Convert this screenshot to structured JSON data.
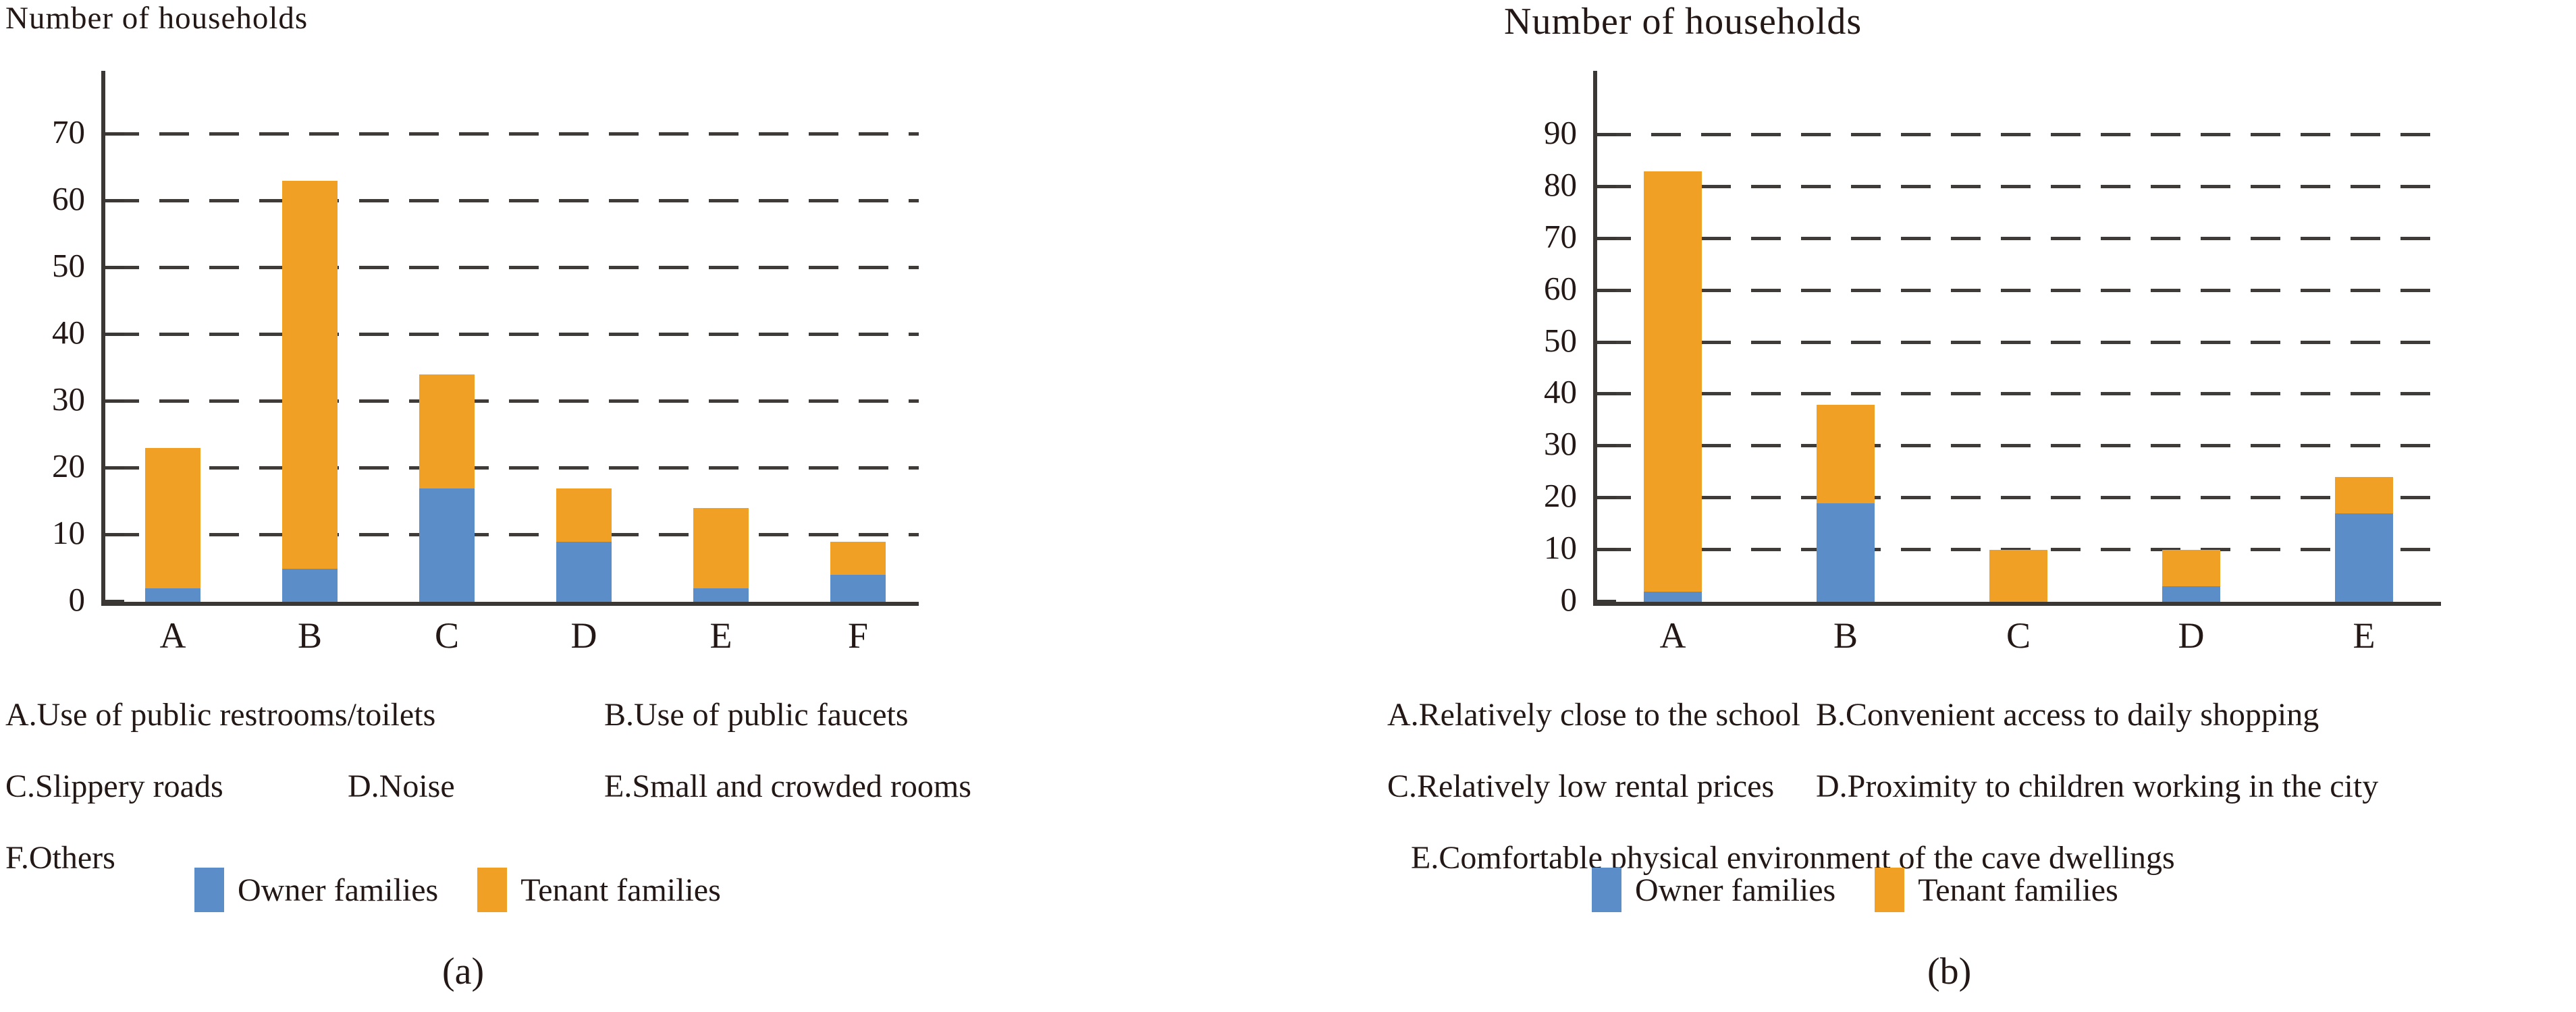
{
  "chart_data": [
    {
      "type": "bar",
      "stacked": true,
      "title": "Number of households",
      "caption": "(a)",
      "categories": [
        "A",
        "B",
        "C",
        "D",
        "E",
        "F"
      ],
      "series": [
        {
          "name": "Owner families",
          "values": [
            2,
            5,
            17,
            9,
            2,
            4
          ]
        },
        {
          "name": "Tenant families",
          "values": [
            21,
            58,
            17,
            8,
            12,
            5
          ]
        }
      ],
      "stack_totals": [
        23,
        63,
        34,
        17,
        14,
        9
      ],
      "ylim": [
        0,
        75
      ],
      "yticks": [
        0,
        10,
        20,
        30,
        40,
        50,
        60,
        70
      ],
      "grid": "dashed-horizontal",
      "legend_position": "bottom",
      "colors": {
        "owner": "#5b8dc9",
        "tenant": "#f0a125"
      },
      "annotations": [
        [
          "A.Use of public restrooms/toilets",
          "B.Use of public faucets"
        ],
        [
          "C.Slippery roads",
          "D.Noise",
          "E.Small and crowded rooms"
        ],
        [
          "F.Others"
        ]
      ]
    },
    {
      "type": "bar",
      "stacked": true,
      "title": "Number of households",
      "caption": "(b)",
      "categories": [
        "A",
        "B",
        "C",
        "D",
        "E"
      ],
      "series": [
        {
          "name": "Owner families",
          "values": [
            2,
            19,
            0,
            3,
            17
          ]
        },
        {
          "name": "Tenant families",
          "values": [
            81,
            19,
            10,
            7,
            7
          ]
        }
      ],
      "stack_totals": [
        83,
        38,
        10,
        10,
        24
      ],
      "ylim": [
        0,
        100
      ],
      "yticks": [
        0,
        10,
        20,
        30,
        40,
        50,
        60,
        70,
        80,
        90
      ],
      "grid": "dashed-horizontal",
      "legend_position": "bottom",
      "colors": {
        "owner": "#5b8dc9",
        "tenant": "#f0a125"
      },
      "annotations": [
        [
          "A.Relatively close to the school",
          "B.Convenient access to daily shopping"
        ],
        [
          "C.Relatively low rental prices",
          "D.Proximity to children working in the city"
        ],
        [
          "E.Comfortable physical environment of the cave dwellings"
        ]
      ]
    }
  ]
}
